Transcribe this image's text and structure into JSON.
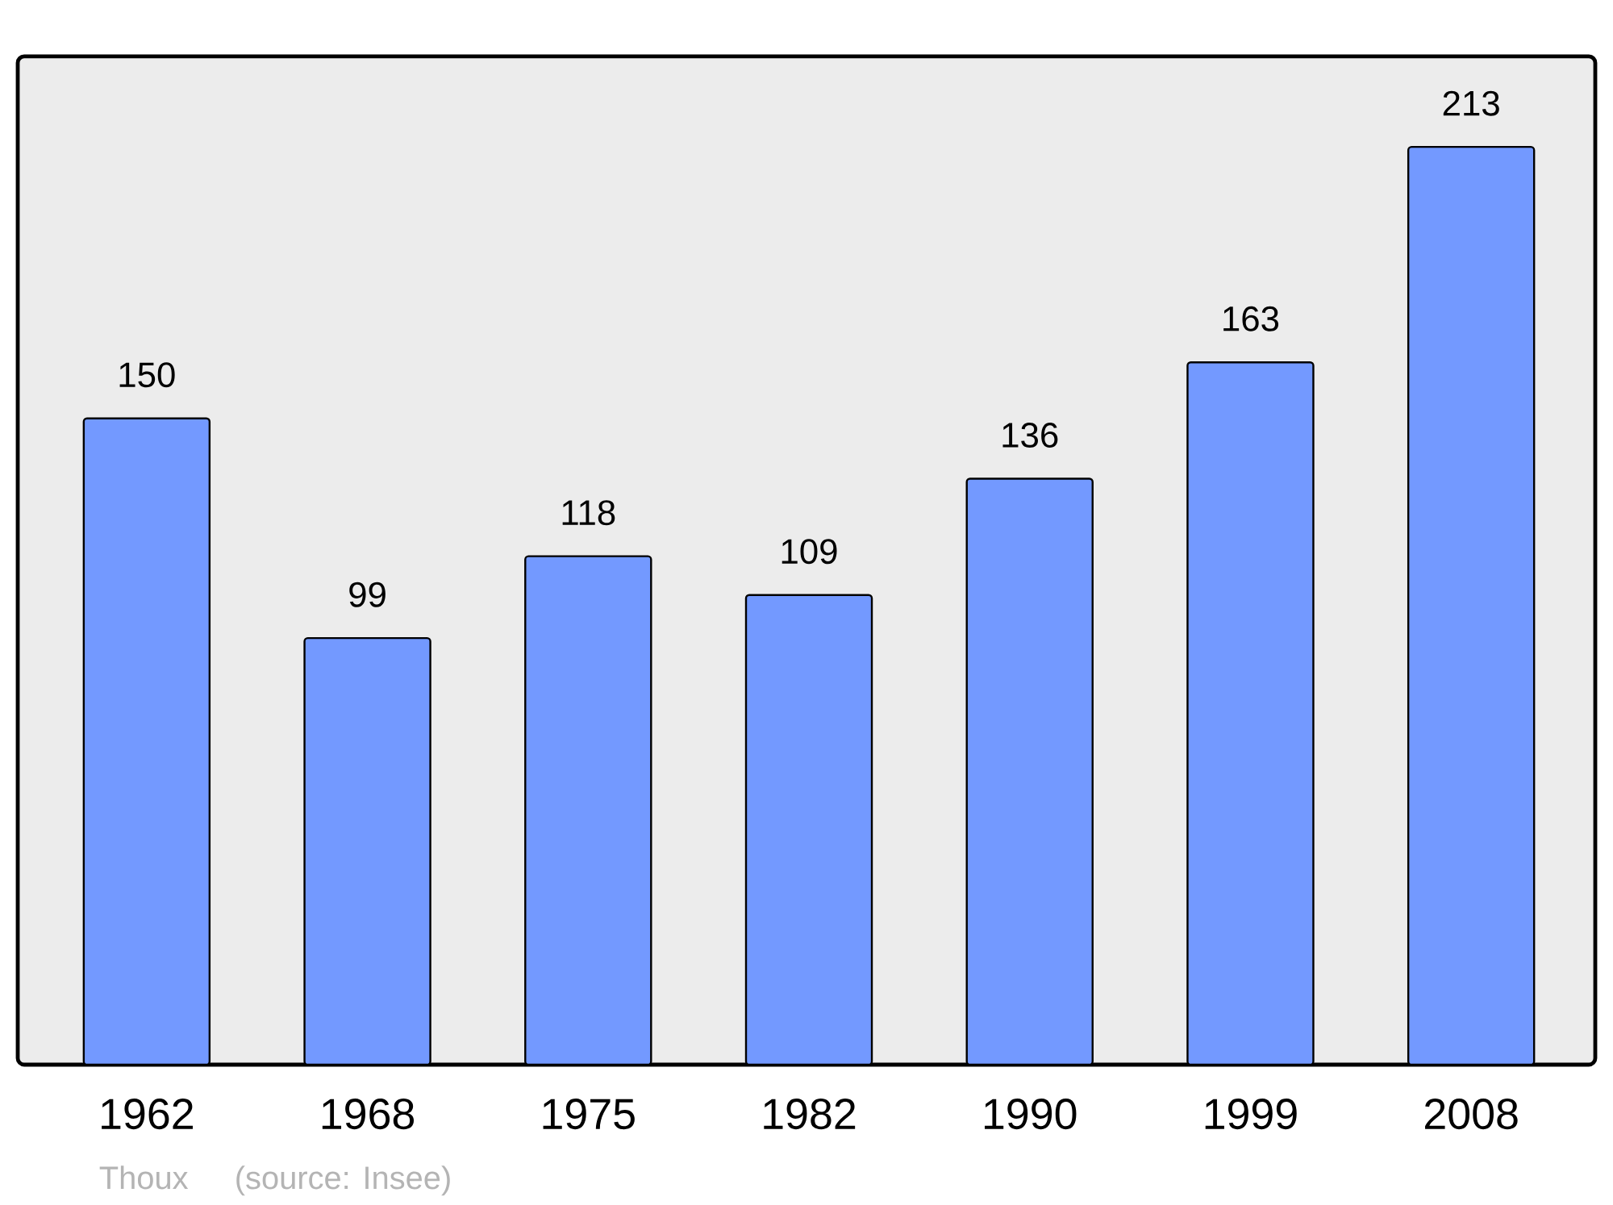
{
  "chart_data": {
    "type": "bar",
    "categories": [
      "1962",
      "1968",
      "1975",
      "1982",
      "1990",
      "1999",
      "2008"
    ],
    "values": [
      150,
      99,
      118,
      109,
      136,
      163,
      213
    ],
    "color": "#7399ff",
    "ylim": [
      0,
      234
    ],
    "data_labels": true,
    "annotations": [
      "Thoux",
      "(source: Insee)"
    ]
  }
}
